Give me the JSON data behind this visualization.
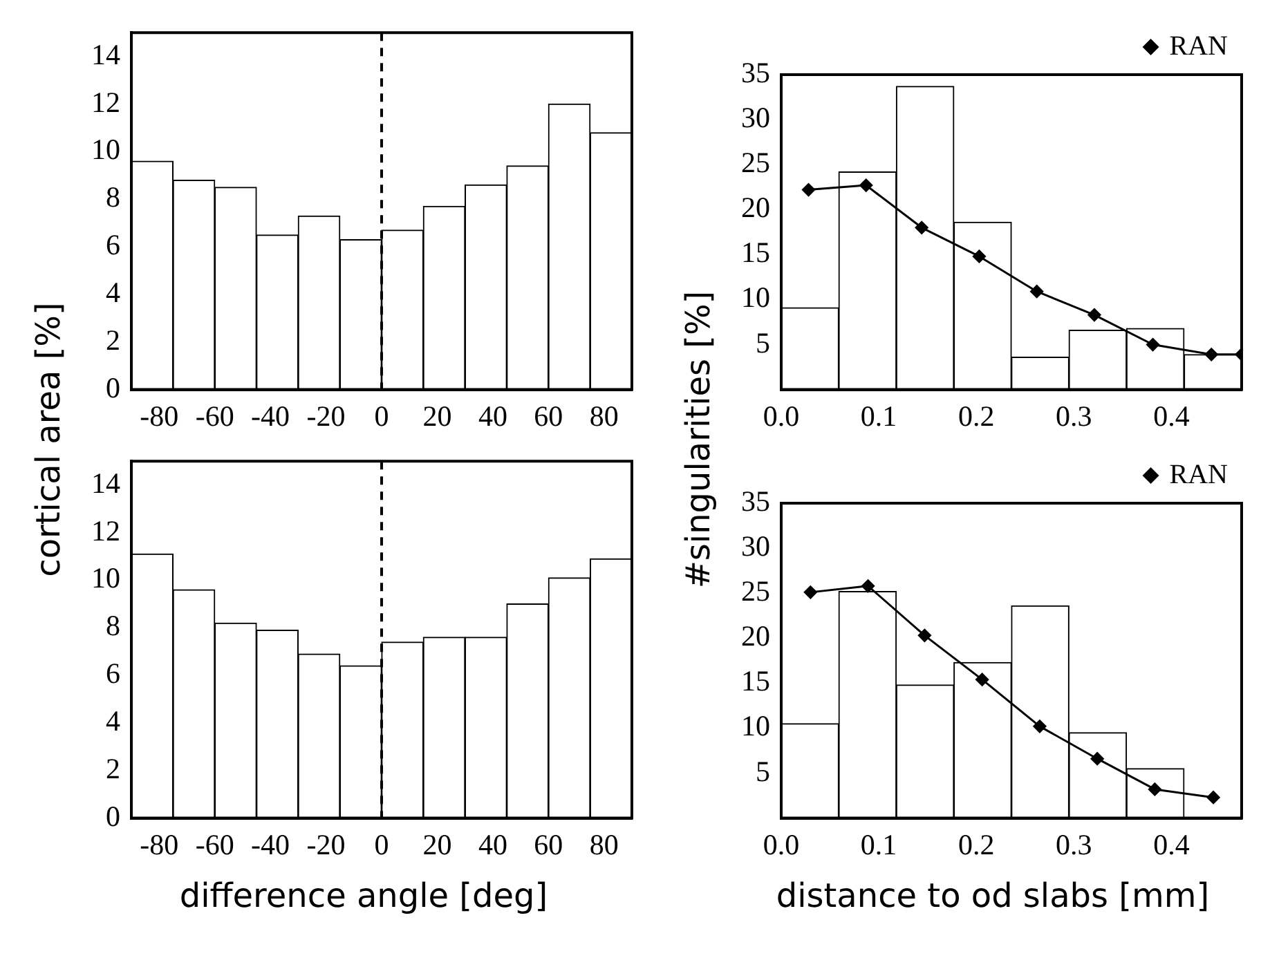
{
  "chart_data": [
    {
      "type": "histogram",
      "ylabel": "cortical area [%]",
      "bins": [
        -90,
        -75,
        -60,
        -45,
        -30,
        -15,
        0,
        15,
        30,
        45,
        60,
        75,
        90
      ],
      "values": [
        9.6,
        8.8,
        8.5,
        6.5,
        7.3,
        6.3,
        6.7,
        7.7,
        8.6,
        9.4,
        12.0,
        10.8
      ],
      "color": "#ffffff",
      "xlim": [
        -90,
        90
      ],
      "xticks": [
        -80,
        -60,
        -40,
        -20,
        0,
        20,
        40,
        60,
        80
      ],
      "ylim": [
        0,
        15
      ],
      "yticks": [
        0,
        2,
        4,
        6,
        8,
        10,
        12,
        14
      ],
      "ref_lines": [
        {
          "axis": "x",
          "value": 0,
          "line_style": "dashed",
          "color": "#000000"
        }
      ]
    },
    {
      "type": "histogram",
      "ylabel": "#singularities [%]",
      "bins": [
        0,
        0.059,
        0.118,
        0.177,
        0.236,
        0.295,
        0.354,
        0.413,
        0.472
      ],
      "values": [
        9.1,
        24.2,
        33.7,
        18.6,
        3.6,
        6.6,
        6.8,
        3.9
      ],
      "color": "#ffffff",
      "xlim": [
        0,
        0.472
      ],
      "xticks": [
        {
          "value": 0,
          "label": "0.0"
        },
        0.1,
        0.2,
        0.3,
        0.4
      ],
      "ylim": [
        0,
        35
      ],
      "yticks": [
        5,
        10,
        15,
        20,
        25,
        30,
        35
      ],
      "legend": "top right",
      "marker": "diamond",
      "series": [
        {
          "name": "RAN",
          "type": "line",
          "color": "#000000",
          "x": [
            0.028,
            0.087,
            0.144,
            0.203,
            0.262,
            0.321,
            0.381,
            0.441,
            0.472
          ],
          "values": [
            22.2,
            22.7,
            18.0,
            14.8,
            10.9,
            8.3,
            5.0,
            3.9,
            3.9
          ]
        }
      ]
    },
    {
      "type": "histogram",
      "xlabel": "difference angle [deg]",
      "bins": [
        -90,
        -75,
        -60,
        -45,
        -30,
        -15,
        0,
        15,
        30,
        45,
        60,
        75,
        90
      ],
      "values": [
        11.1,
        9.6,
        8.2,
        7.9,
        6.9,
        6.4,
        7.4,
        7.6,
        7.6,
        9.0,
        10.1,
        10.9
      ],
      "color": "#ffffff",
      "xlim": [
        -90,
        90
      ],
      "xticks": [
        -80,
        -60,
        -40,
        -20,
        0,
        20,
        40,
        60,
        80
      ],
      "ylim": [
        0,
        15
      ],
      "yticks": [
        0,
        2,
        4,
        6,
        8,
        10,
        12,
        14
      ],
      "ref_lines": [
        {
          "axis": "x",
          "value": 0,
          "line_style": "dashed",
          "color": "#000000"
        }
      ]
    },
    {
      "type": "histogram",
      "xlabel": "distance to od slabs [mm]",
      "bins": [
        0,
        0.059,
        0.118,
        0.177,
        0.236,
        0.295,
        0.354,
        0.413
      ],
      "values": [
        10.5,
        25.2,
        14.8,
        17.3,
        23.6,
        9.5,
        5.5
      ],
      "color": "#ffffff",
      "xlim": [
        0,
        0.472
      ],
      "xticks": [
        {
          "value": 0,
          "label": "0.0"
        },
        0.1,
        0.2,
        0.3,
        0.4
      ],
      "ylim": [
        0,
        35
      ],
      "yticks": [
        5,
        10,
        15,
        20,
        25,
        30,
        35
      ],
      "legend": "top right",
      "marker": "diamond",
      "series": [
        {
          "name": "RAN",
          "type": "line",
          "color": "#000000",
          "x": [
            0.03,
            0.089,
            0.147,
            0.206,
            0.265,
            0.324,
            0.383,
            0.443
          ],
          "values": [
            25.1,
            25.8,
            20.3,
            15.4,
            10.2,
            6.6,
            3.2,
            2.3
          ]
        }
      ]
    }
  ]
}
